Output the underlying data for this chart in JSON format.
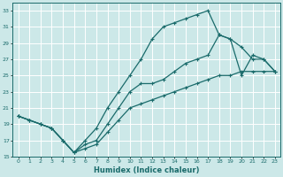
{
  "xlabel": "Humidex (Indice chaleur)",
  "bg_color": "#cce8e8",
  "line_color": "#1a6b6b",
  "grid_color": "#ffffff",
  "xlim": [
    -0.5,
    23.5
  ],
  "ylim": [
    15,
    34
  ],
  "yticks": [
    15,
    17,
    19,
    21,
    23,
    25,
    27,
    29,
    31,
    33
  ],
  "xticks": [
    0,
    1,
    2,
    3,
    4,
    5,
    6,
    7,
    8,
    9,
    10,
    11,
    12,
    13,
    14,
    15,
    16,
    17,
    18,
    19,
    20,
    21,
    22,
    23
  ],
  "series1_x": [
    0,
    1,
    2,
    3,
    4,
    5,
    6,
    7,
    8,
    9,
    10,
    11,
    12,
    13,
    14,
    15,
    16,
    17,
    18,
    19,
    20,
    21,
    22,
    23
  ],
  "series1_y": [
    20.0,
    19.5,
    19.0,
    18.5,
    17.0,
    15.5,
    16.5,
    17.0,
    19.0,
    21.0,
    23.0,
    24.0,
    24.0,
    24.5,
    25.5,
    26.5,
    27.0,
    27.5,
    30.0,
    29.5,
    25.0,
    27.5,
    27.0,
    25.5
  ],
  "series2_x": [
    0,
    1,
    2,
    3,
    4,
    5,
    6,
    7,
    8,
    9,
    10,
    11,
    12,
    13,
    14,
    15,
    16,
    17,
    18,
    19,
    20,
    21,
    22,
    23
  ],
  "series2_y": [
    20.0,
    19.5,
    19.0,
    18.5,
    17.0,
    15.5,
    17.0,
    18.5,
    21.0,
    23.0,
    25.0,
    27.0,
    29.5,
    31.0,
    31.5,
    32.0,
    32.5,
    33.0,
    30.0,
    29.5,
    28.5,
    27.0,
    27.0,
    25.5
  ],
  "series3_x": [
    0,
    1,
    2,
    3,
    4,
    5,
    6,
    7,
    8,
    9,
    10,
    11,
    12,
    13,
    14,
    15,
    16,
    17,
    18,
    19,
    20,
    21,
    22,
    23
  ],
  "series3_y": [
    20.0,
    19.5,
    19.0,
    18.5,
    17.0,
    15.5,
    16.0,
    16.5,
    18.0,
    19.5,
    21.0,
    21.5,
    22.0,
    22.5,
    23.0,
    23.5,
    24.0,
    24.5,
    25.0,
    25.0,
    25.5,
    25.5,
    25.5,
    25.5
  ]
}
